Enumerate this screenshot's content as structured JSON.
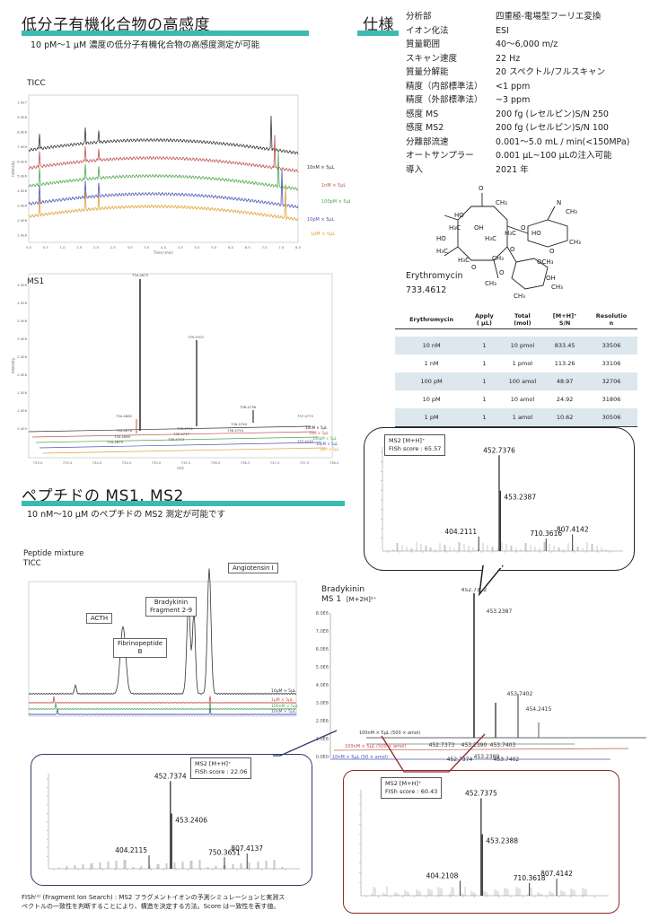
{
  "section1": {
    "title": "低分子有機化合物の高感度",
    "subtitle": "10 pM～1 μM 濃度の低分子有機化合物の高感度測定が可能"
  },
  "spec": {
    "title": "仕様",
    "rows": [
      {
        "k": "分析部",
        "v": "四重極-電場型フーリエ変換"
      },
      {
        "k": "イオン化法",
        "v": "ESI"
      },
      {
        "k": "質量範囲",
        "v": "40～6,000 m/z"
      },
      {
        "k": "スキャン速度",
        "v": "22 Hz"
      },
      {
        "k": "質量分解能",
        "v": "20 スペクトル/フルスキャン"
      },
      {
        "k": "精度（内部標準法）",
        "v": "<1 ppm"
      },
      {
        "k": "精度（外部標準法）",
        "v": "~3 ppm"
      },
      {
        "k": "感度 MS",
        "v": "200 fg (レセルピン)S/N 250"
      },
      {
        "k": "感度 MS2",
        "v": "200 fg (レセルピン)S/N 100"
      },
      {
        "k": "分離部流速",
        "v": "0.001～5.0 mL / min(<150MPa)"
      },
      {
        "k": "オートサンプラー",
        "v": "0.001 μL~100 μLの注入可能"
      },
      {
        "k": "導入",
        "v": "2021 年"
      }
    ]
  },
  "molecule": {
    "name": "Erythromycin",
    "mass": "733.4612",
    "atoms": {
      "o1": "O",
      "h3c1": "H₃C",
      "oh1": "OH",
      "ch3_1": "CH₃",
      "ho1": "HO",
      "ho2": "HO",
      "h3c2": "H₃C",
      "n": "N",
      "h3c3": "H₃C",
      "h3c4": "H₃C",
      "o2": "O",
      "ho3": "HO",
      "ch3_2": "CH₃",
      "o3": "O",
      "o4": "O",
      "o5": "O",
      "och3": "OCH₃",
      "ch3_3": "CH₃",
      "ch3_4": "CH₃",
      "ch3_5": "CH₃",
      "ch3_6": "CH₃",
      "oh2": "OH",
      "ch3_7": "CH₃",
      "o6": "O",
      "h3c5": "H₃C"
    }
  },
  "sens_table": {
    "headers": [
      "Erythromycin",
      "Apply\n( μL)",
      "Total\n(mol)",
      "[M+H]⁺\nS/N",
      "Resolutio\nn"
    ],
    "rows": [
      [
        "10 nM",
        "1",
        "10 pmol",
        "833.45",
        "33506"
      ],
      [
        "1 nM",
        "1",
        "1 pmol",
        "113.26",
        "33106"
      ],
      [
        "100 pM",
        "1",
        "100 amol",
        "48.97",
        "32706"
      ],
      [
        "10 pM",
        "1",
        "10 amol",
        "24.92",
        "31806"
      ],
      [
        "1 pM",
        "1",
        "1 amol",
        "10.62",
        "30506"
      ]
    ]
  },
  "ticc": {
    "label": "TICC",
    "ylabel": "Intensity",
    "xlabel": "Time (min)",
    "yticks": [
      "1.0E7",
      "9.0E6",
      "8.0E6",
      "7.0E6",
      "6.0E6",
      "5.0E6",
      "4.0E6",
      "3.0E6",
      "2.0E6",
      "1.0E6"
    ],
    "xticks": [
      "0.0",
      "0.5",
      "1.0",
      "1.5",
      "2.0",
      "2.5",
      "3.0",
      "3.5",
      "4.0",
      "4.5",
      "5.0",
      "5.5",
      "6.0",
      "6.5",
      "7.0",
      "7.5",
      "8.0"
    ],
    "traces": [
      {
        "label": "10nM × 5μL",
        "color": "#333333"
      },
      {
        "label": "1nM × 5μL",
        "color": "#c0504d"
      },
      {
        "label": "100pM × 5μL",
        "color": "#4aa84a"
      },
      {
        "label": "10pM × 5μL",
        "color": "#4a56b8"
      },
      {
        "label": "1pM × 5μL",
        "color": "#e0a030"
      }
    ]
  },
  "ms1": {
    "label": "MS1",
    "ylabel": "Intensity",
    "xlabel": "m/z",
    "xticks": [
      "733.0",
      "733.5",
      "734.0",
      "734.5",
      "735.0",
      "735.5",
      "736.0",
      "736.5",
      "737.0",
      "737.5",
      "738.0"
    ],
    "yticks": [
      "4.5E6",
      "4.0E6",
      "3.5E6",
      "3.0E6",
      "2.5E6",
      "2.0E6",
      "1.5E6",
      "1.0E6",
      "5.0E5"
    ],
    "peaks": [
      "734.4673",
      "735.4707",
      "736.4736",
      "734.4662",
      "737.4772",
      "734.4676",
      "735.4711",
      "736.4740",
      "734.4669",
      "735.4717",
      "736.4754",
      "734.4679",
      "735.4713",
      "737.4142"
    ],
    "traces": [
      "10nM × 5μL",
      "1nM × 5μL",
      "100pM × 5μL",
      "10pM × 5μL",
      "1pM × 5μL"
    ]
  },
  "section2": {
    "title": "ペプチドの MS1, MS2",
    "subtitle": "10 nM～10 μM のペプチドの MS2 測定が可能です"
  },
  "peptide_ticc": {
    "title1": "Peptide mixture",
    "title2": "TICC",
    "callouts": [
      "Angiotensin Ⅰ",
      "ACTH",
      "Bradykinin\nFragment 2-9",
      "Fibrinopeptide\nB"
    ],
    "traces": [
      "10μM × 5μL",
      "1μM × 5μL",
      "100nM × 5μL",
      "10nM × 5μL"
    ]
  },
  "bradykinin": {
    "title": "Bradykinin",
    "subtitle": "MS 1",
    "ion": "[M+2H]²⁺",
    "yticks": [
      "8.0E6",
      "7.0E6",
      "6.0E6",
      "5.0E6",
      "4.0E6",
      "3.0E6",
      "2.0E6",
      "1.0E6",
      "0.0E0"
    ],
    "xticks": [
      "450",
      "451",
      "452",
      "453",
      "454",
      "455",
      "456",
      "457"
    ],
    "xlabel": "m/z",
    "peaks": [
      "452.7372",
      "453.2387",
      "453.7402",
      "454.2415",
      "452.7373",
      "453.2390",
      "453.7403",
      "452.7374",
      "453.2389",
      "453.7402"
    ],
    "traces": [
      "100nM × 5μL (500 × amol)",
      "100nM × 5μL (500 × amol)",
      "10nM × 5μL (50 × amol)"
    ]
  },
  "ms2_panels": [
    {
      "title": "MS2 [M+H]⁺",
      "score": "FISh score : 65.57",
      "peaks": [
        "452.7376",
        "453.2387",
        "404.2111",
        "710.3616",
        "807.4142"
      ]
    },
    {
      "title": "MS2 [M+H]⁺",
      "score": "FISh score : 22.06",
      "peaks": [
        "452.7374",
        "453.2406",
        "404.2115",
        "750.3651",
        "807.4137"
      ]
    },
    {
      "title": "MS2 [M+H]⁺",
      "score": "FISh score : 60.43",
      "peaks": [
        "452.7375",
        "453.2388",
        "404.2108",
        "710.3618",
        "807.4142"
      ]
    }
  ],
  "footnote": {
    "line1": "FISh⁽¹⁾ (Fragment Ion Search) : MS2 フラグメントイオンの予測シミュレーションと実測ス",
    "line2": "ペクトルの一致性を判断することにより、構造を決定する方法。Score は一致性を表す値。"
  },
  "colors": {
    "teal": "#3bbbb0",
    "black": "#333333",
    "red": "#c0504d",
    "green": "#4aa84a",
    "blue": "#4a56b8",
    "orange": "#e0a030",
    "navy": "#2e3a6e",
    "maroon": "#8b2b2b"
  }
}
